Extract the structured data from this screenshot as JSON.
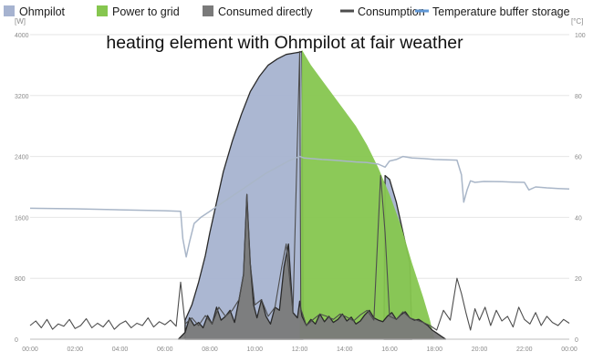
{
  "chart_data": {
    "type": "area",
    "title": "heating element with Ohmpilot at fair weather",
    "y_unit_left": "[W]",
    "y_unit_right": "[°C]",
    "ylim_left": [
      0,
      4000
    ],
    "ylim_right": [
      0,
      100
    ],
    "yticks_left": [
      0,
      800,
      1600,
      2400,
      3200,
      4000
    ],
    "yticks_right": [
      0,
      20,
      40,
      60,
      80,
      100
    ],
    "xlim": [
      0,
      24
    ],
    "xticks": [
      "00:00",
      "02:00",
      "04:00",
      "06:00",
      "08:00",
      "10:00",
      "12:00",
      "14:00",
      "16:00",
      "18:00",
      "20:00",
      "22:00",
      "00:00"
    ],
    "grid": true,
    "legend_position": "top",
    "legend": [
      {
        "label": "Ohmpilot",
        "color": "#a6b3d0",
        "swatch": "square"
      },
      {
        "label": "Power to grid",
        "color": "#86c64f",
        "swatch": "square"
      },
      {
        "label": "Consumed directly",
        "color": "#7a7a7a",
        "swatch": "square"
      },
      {
        "label": "Consumption",
        "color": "#4d4d4d",
        "swatch": "line"
      },
      {
        "label": "Temperature buffer storage",
        "color": "#5f97d6",
        "swatch": "line"
      }
    ],
    "series": [
      {
        "name": "Ohmpilot",
        "kind": "area",
        "color": "#a6b3d0",
        "stroke": "#2a2a2a",
        "x": [
          6.9,
          7.2,
          7.5,
          7.8,
          8.0,
          8.3,
          8.6,
          9.0,
          9.4,
          9.8,
          10.2,
          10.6,
          11.0,
          11.4,
          11.8,
          12.0,
          12.1,
          12.15
        ],
        "y": [
          250,
          450,
          750,
          1100,
          1400,
          1800,
          2200,
          2600,
          2950,
          3250,
          3450,
          3600,
          3680,
          3740,
          3760,
          3770,
          3780,
          400
        ]
      },
      {
        "name": "Ohmpilot",
        "kind": "area",
        "color": "#a6b3d0",
        "stroke": "#2a2a2a",
        "x": [
          15.75,
          15.8,
          16.0,
          16.3,
          16.6,
          16.9,
          17.0
        ],
        "y": [
          0,
          2150,
          2100,
          1800,
          1400,
          1000,
          0
        ]
      },
      {
        "name": "Power to grid",
        "kind": "area",
        "color": "#86c64f",
        "stroke": "none",
        "x": [
          12.0,
          12.1,
          12.2,
          12.5,
          13.0,
          13.5,
          14.0,
          14.5,
          15.0,
          15.5,
          16.0,
          16.5,
          17.0,
          17.5,
          17.8,
          18.0
        ],
        "y": [
          0,
          3800,
          3750,
          3600,
          3400,
          3200,
          3000,
          2800,
          2550,
          2250,
          1900,
          1500,
          1000,
          550,
          250,
          0
        ]
      },
      {
        "name": "Consumed directly",
        "kind": "area",
        "color": "#7a7a7a",
        "stroke": "#2a2a2a",
        "x": [
          6.6,
          6.9,
          7.1,
          7.3,
          7.5,
          7.7,
          7.9,
          8.1,
          8.3,
          8.5,
          8.7,
          8.9,
          9.1,
          9.3,
          9.5,
          9.65,
          9.8,
          9.95,
          10.1,
          10.3,
          10.5,
          10.7,
          10.9,
          11.1,
          11.3,
          11.5,
          11.7,
          11.9,
          12.0,
          12.1,
          12.3,
          12.5,
          12.7,
          12.9,
          13.1,
          13.3,
          13.5,
          13.7,
          13.9,
          14.1,
          14.3,
          14.5,
          14.7,
          14.9,
          15.1,
          15.3,
          15.5,
          15.7,
          15.9,
          16.1,
          16.3,
          16.5,
          16.7,
          16.9,
          17.1,
          17.3,
          17.5,
          17.7,
          17.9,
          18.1,
          18.3,
          18.5
        ],
        "y": [
          0,
          90,
          280,
          180,
          220,
          150,
          310,
          200,
          420,
          250,
          300,
          380,
          220,
          520,
          850,
          1900,
          1000,
          450,
          280,
          520,
          300,
          200,
          420,
          380,
          950,
          1250,
          350,
          280,
          500,
          300,
          180,
          260,
          200,
          330,
          230,
          300,
          220,
          260,
          330,
          240,
          290,
          200,
          240,
          320,
          380,
          280,
          250,
          230,
          300,
          350,
          260,
          320,
          360,
          280,
          250,
          260,
          220,
          180,
          120,
          80,
          40,
          0
        ]
      },
      {
        "name": "Consumption",
        "kind": "line",
        "axis": "left",
        "color": "#4d4d4d",
        "x": [
          0.0,
          0.25,
          0.5,
          0.75,
          1.0,
          1.25,
          1.5,
          1.75,
          2.0,
          2.25,
          2.5,
          2.75,
          3.0,
          3.25,
          3.5,
          3.75,
          4.0,
          4.25,
          4.5,
          4.75,
          5.0,
          5.25,
          5.5,
          5.75,
          6.0,
          6.25,
          6.5,
          6.7,
          6.9,
          7.2,
          7.5,
          7.8,
          8.1,
          8.4,
          8.7,
          9.0,
          9.3,
          9.5,
          9.65,
          9.8,
          10.0,
          10.3,
          10.6,
          10.9,
          11.2,
          11.4,
          11.7,
          12.0,
          12.05,
          12.3,
          12.6,
          12.9,
          13.2,
          13.5,
          13.8,
          14.1,
          14.4,
          14.7,
          15.0,
          15.3,
          15.6,
          15.8,
          16.0,
          16.3,
          16.6,
          16.9,
          17.2,
          17.5,
          17.8,
          18.1,
          18.4,
          18.7,
          19.0,
          19.2,
          19.4,
          19.6,
          19.8,
          20.0,
          20.25,
          20.5,
          20.75,
          21.0,
          21.25,
          21.5,
          21.75,
          22.0,
          22.25,
          22.5,
          22.75,
          23.0,
          23.25,
          23.5,
          23.75,
          24.0
        ],
        "y": [
          180,
          240,
          150,
          260,
          130,
          200,
          170,
          260,
          140,
          180,
          270,
          150,
          210,
          160,
          250,
          130,
          200,
          240,
          150,
          210,
          180,
          280,
          160,
          230,
          190,
          250,
          170,
          750,
          200,
          280,
          180,
          310,
          200,
          420,
          300,
          380,
          520,
          850,
          1900,
          1000,
          450,
          520,
          300,
          420,
          950,
          1250,
          350,
          3780,
          400,
          180,
          260,
          330,
          300,
          260,
          330,
          290,
          240,
          320,
          380,
          250,
          2150,
          1400,
          300,
          260,
          360,
          280,
          250,
          220,
          180,
          120,
          380,
          250,
          800,
          600,
          350,
          120,
          400,
          250,
          420,
          180,
          380,
          240,
          300,
          160,
          420,
          260,
          200,
          350,
          180,
          300,
          220,
          180,
          260,
          210
        ]
      },
      {
        "name": "Temperature buffer storage",
        "kind": "line",
        "axis": "right",
        "color": "#a9b6c8",
        "x": [
          0.0,
          2.0,
          4.0,
          6.0,
          6.7,
          6.8,
          6.95,
          7.1,
          7.3,
          7.6,
          8.0,
          8.5,
          9.0,
          9.5,
          10.0,
          10.5,
          11.0,
          11.5,
          12.0,
          12.2,
          12.5,
          13.0,
          13.5,
          14.0,
          14.5,
          15.0,
          15.5,
          15.8,
          16.0,
          16.3,
          16.6,
          17.0,
          17.5,
          18.0,
          18.5,
          19.0,
          19.2,
          19.3,
          19.45,
          19.6,
          19.8,
          20.2,
          21.0,
          21.5,
          22.0,
          22.2,
          22.5,
          23.0,
          23.5,
          24.0
        ],
        "y": [
          43,
          42.8,
          42.5,
          42.2,
          42,
          33,
          27,
          32,
          38,
          40,
          42,
          44.5,
          47,
          49.5,
          52,
          54.5,
          56.5,
          58.5,
          60,
          59.5,
          59.3,
          59,
          58.8,
          58.5,
          58.2,
          58,
          57.5,
          56.5,
          58.5,
          59,
          60,
          59.5,
          59.3,
          59,
          58.9,
          58.8,
          54,
          45,
          49,
          52,
          51.5,
          51.8,
          51.7,
          51.6,
          51.5,
          49,
          50,
          49.7,
          49.5,
          49.3
        ]
      }
    ]
  }
}
